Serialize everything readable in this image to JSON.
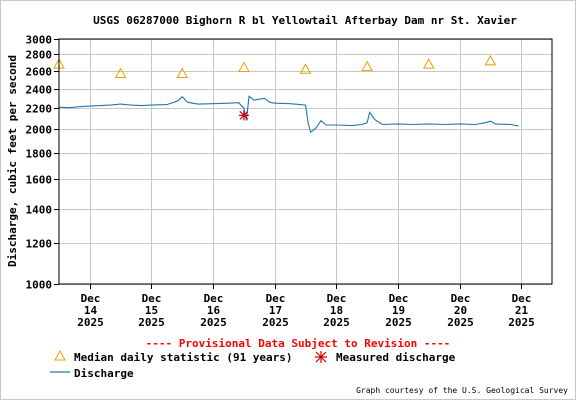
{
  "chart_data": {
    "type": "line",
    "title": "USGS 06287000 Bighorn R bl Yellowtail Afterbay Dam nr St. Xavier",
    "ylabel": "Discharge, cubic feet per second",
    "xlabel": "",
    "y_scale": "log",
    "ylim": [
      1000,
      3000
    ],
    "y_ticks": [
      1000,
      1200,
      1400,
      1600,
      1800,
      2000,
      2200,
      2400,
      2600,
      2800,
      3000
    ],
    "x_range_days": [
      "2025-12-13T12:00",
      "2025-12-21T12:00"
    ],
    "x_ticks": [
      {
        "date": "2025-12-14",
        "label": [
          "Dec",
          "14",
          "2025"
        ]
      },
      {
        "date": "2025-12-15",
        "label": [
          "Dec",
          "15",
          "2025"
        ]
      },
      {
        "date": "2025-12-16",
        "label": [
          "Dec",
          "16",
          "2025"
        ]
      },
      {
        "date": "2025-12-17",
        "label": [
          "Dec",
          "17",
          "2025"
        ]
      },
      {
        "date": "2025-12-18",
        "label": [
          "Dec",
          "18",
          "2025"
        ]
      },
      {
        "date": "2025-12-19",
        "label": [
          "Dec",
          "19",
          "2025"
        ]
      },
      {
        "date": "2025-12-20",
        "label": [
          "Dec",
          "20",
          "2025"
        ]
      },
      {
        "date": "2025-12-21",
        "label": [
          "Dec",
          "21",
          "2025"
        ]
      }
    ],
    "grid": true,
    "series": [
      {
        "name": "Discharge",
        "color": "#1f77b4",
        "points": [
          [
            "2025-12-13T12:00",
            2210
          ],
          [
            "2025-12-13T16:00",
            2205
          ],
          [
            "2025-12-13T20:00",
            2215
          ],
          [
            "2025-12-14T00:00",
            2220
          ],
          [
            "2025-12-14T04:00",
            2225
          ],
          [
            "2025-12-14T08:00",
            2230
          ],
          [
            "2025-12-14T12:00",
            2240
          ],
          [
            "2025-12-14T16:00",
            2230
          ],
          [
            "2025-12-14T20:00",
            2225
          ],
          [
            "2025-12-15T00:00",
            2230
          ],
          [
            "2025-12-15T06:00",
            2235
          ],
          [
            "2025-12-15T10:00",
            2270
          ],
          [
            "2025-12-15T12:00",
            2315
          ],
          [
            "2025-12-15T14:00",
            2260
          ],
          [
            "2025-12-15T18:00",
            2240
          ],
          [
            "2025-12-16T00:00",
            2245
          ],
          [
            "2025-12-16T06:00",
            2250
          ],
          [
            "2025-12-16T10:00",
            2255
          ],
          [
            "2025-12-16T12:00",
            2200
          ],
          [
            "2025-12-16T13:00",
            2080
          ],
          [
            "2025-12-16T14:00",
            2320
          ],
          [
            "2025-12-16T16:00",
            2280
          ],
          [
            "2025-12-16T20:00",
            2300
          ],
          [
            "2025-12-16T22:00",
            2260
          ],
          [
            "2025-12-17T00:00",
            2250
          ],
          [
            "2025-12-17T06:00",
            2245
          ],
          [
            "2025-12-17T10:00",
            2235
          ],
          [
            "2025-12-17T12:00",
            2230
          ],
          [
            "2025-12-17T13:00",
            2060
          ],
          [
            "2025-12-17T14:00",
            1975
          ],
          [
            "2025-12-17T16:00",
            2010
          ],
          [
            "2025-12-17T18:00",
            2080
          ],
          [
            "2025-12-17T20:00",
            2040
          ],
          [
            "2025-12-18T00:00",
            2040
          ],
          [
            "2025-12-18T06:00",
            2035
          ],
          [
            "2025-12-18T10:00",
            2045
          ],
          [
            "2025-12-18T12:00",
            2060
          ],
          [
            "2025-12-18T13:00",
            2160
          ],
          [
            "2025-12-18T15:00",
            2090
          ],
          [
            "2025-12-18T18:00",
            2045
          ],
          [
            "2025-12-19T00:00",
            2050
          ],
          [
            "2025-12-19T06:00",
            2045
          ],
          [
            "2025-12-19T12:00",
            2050
          ],
          [
            "2025-12-19T18:00",
            2045
          ],
          [
            "2025-12-20T00:00",
            2050
          ],
          [
            "2025-12-20T06:00",
            2045
          ],
          [
            "2025-12-20T10:00",
            2060
          ],
          [
            "2025-12-20T12:00",
            2075
          ],
          [
            "2025-12-20T14:00",
            2050
          ],
          [
            "2025-12-20T20:00",
            2045
          ],
          [
            "2025-12-20T23:00",
            2030
          ]
        ]
      },
      {
        "name": "Median daily statistic (91 years)",
        "marker": "triangle",
        "color": "#e8a200",
        "points": [
          [
            "2025-12-13T12:00",
            2680
          ],
          [
            "2025-12-14T12:00",
            2570
          ],
          [
            "2025-12-15T12:00",
            2570
          ],
          [
            "2025-12-16T12:00",
            2640
          ],
          [
            "2025-12-17T12:00",
            2620
          ],
          [
            "2025-12-18T12:00",
            2650
          ],
          [
            "2025-12-19T12:00",
            2680
          ],
          [
            "2025-12-20T12:00",
            2720
          ]
        ]
      },
      {
        "name": "Measured discharge",
        "marker": "asterisk",
        "color": "#cc0000",
        "points": [
          [
            "2025-12-16T12:00",
            2130
          ]
        ]
      }
    ]
  },
  "provisional_text": "---- Provisional Data Subject to Revision ----",
  "legend": {
    "median_label": "Median daily statistic (91 years)",
    "measured_label": "Measured discharge",
    "discharge_label": "Discharge"
  },
  "credit": "Graph courtesy of the U.S. Geological Survey"
}
